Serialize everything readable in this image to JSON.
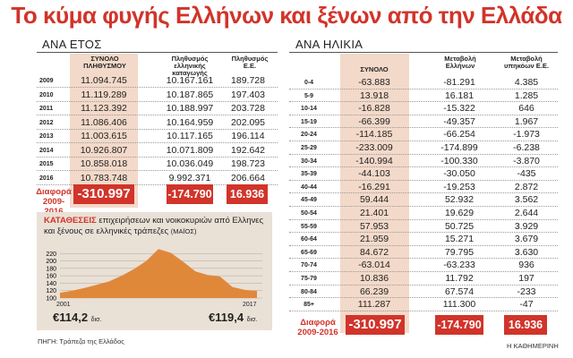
{
  "title": "Το κύμα φυγής Ελλήνων και ξένων από την Ελλάδα",
  "left_section": "ΑΝΑ ΕΤΟΣ",
  "right_section": "ΑΝΑ ΗΛΙΚΙΑ",
  "left_headers": {
    "total": "ΣΥΝΟΛΟ ΠΛΗΘΥΣΜΟΥ",
    "greek": "Πληθυσμός ελληνικής καταγωγής",
    "eu": "Πληθυσμός Ε.Ε."
  },
  "right_headers": {
    "total": "ΣΥΝΟΛΟ",
    "greek": "Μεταβολή Ελλήνων",
    "eu": "Μεταβολή υπηκόων Ε.Ε."
  },
  "diff_label": "Διαφορά 2009-2016",
  "chart_data": [
    {
      "type": "table",
      "columns": [
        "",
        "ΣΥΝΟΛΟ ΠΛΗΘΥΣΜΟΥ",
        "Πληθυσμός ελληνικής καταγωγής",
        "Πληθυσμός Ε.Ε."
      ],
      "rows": [
        [
          "2009",
          "11.094.745",
          "10.167.161",
          "189.728"
        ],
        [
          "2010",
          "11.119.289",
          "10.187.865",
          "197.403"
        ],
        [
          "2011",
          "11.123.392",
          "10.188.997",
          "203.728"
        ],
        [
          "2012",
          "11.086.406",
          "10.164.959",
          "202.095"
        ],
        [
          "2013",
          "11.003.615",
          "10.117.165",
          "196.114"
        ],
        [
          "2014",
          "10.926.807",
          "10.071.809",
          "192.642"
        ],
        [
          "2015",
          "10.858.018",
          "10.036.049",
          "198.723"
        ],
        [
          "2016",
          "10.783.748",
          "9.992.371",
          "206.664"
        ]
      ],
      "diff": [
        "-310.997",
        "-174.790",
        "16.936"
      ]
    },
    {
      "type": "table",
      "columns": [
        "",
        "ΣΥΝΟΛΟ",
        "Μεταβολή Ελλήνων",
        "Μεταβολή υπηκόων Ε.Ε."
      ],
      "rows": [
        [
          "0-4",
          "-63.883",
          "-81.291",
          "4.385"
        ],
        [
          "5-9",
          "13.918",
          "16.181",
          "1.285"
        ],
        [
          "10-14",
          "-16.828",
          "-15.322",
          "646"
        ],
        [
          "15-19",
          "-66.399",
          "-49.357",
          "1.967"
        ],
        [
          "20-24",
          "-114.185",
          "-66.254",
          "-1.973"
        ],
        [
          "25-29",
          "-233.009",
          "-174.899",
          "-6.238"
        ],
        [
          "30-34",
          "-140.994",
          "-100.330",
          "-3.870"
        ],
        [
          "35-39",
          "-44.103",
          "-30.050",
          "-435"
        ],
        [
          "40-44",
          "-16.291",
          "-19.253",
          "2.872"
        ],
        [
          "45-49",
          "59.444",
          "52.932",
          "3.562"
        ],
        [
          "50-54",
          "21.401",
          "19.629",
          "2.644"
        ],
        [
          "55-59",
          "57.953",
          "50.725",
          "3.929"
        ],
        [
          "60-64",
          "21.959",
          "15.271",
          "3.679"
        ],
        [
          "65-69",
          "84.672",
          "79.795",
          "3.630"
        ],
        [
          "70-74",
          "-63.014",
          "-63.233",
          "936"
        ],
        [
          "75-79",
          "10.836",
          "11.792",
          "197"
        ],
        [
          "80-84",
          "66.239",
          "67.574",
          "-233"
        ],
        [
          "85+",
          "111.287",
          "111.300",
          "-47"
        ]
      ],
      "diff": [
        "-310.997",
        "-174.790",
        "16.936"
      ]
    },
    {
      "type": "area",
      "title_highlight": "ΚΑΤΑΘΕΣΕΙΣ",
      "title_rest": "επιχειρήσεων και νοικοκυριών από Ελληνες και ξένους σε ελληνικές τράπεζες",
      "title_unit": "(ΜΑΪΟΣ)",
      "x": [
        2001,
        2002,
        2003,
        2004,
        2005,
        2006,
        2007,
        2008,
        2009,
        2010,
        2011,
        2012,
        2013,
        2014,
        2015,
        2016,
        2017
      ],
      "values": [
        114.2,
        120,
        127,
        136,
        145,
        160,
        178,
        200,
        232,
        222,
        198,
        172,
        162,
        158,
        130,
        122,
        119.4
      ],
      "ylim": [
        100,
        240
      ],
      "yticks": [
        100,
        120,
        140,
        160,
        180,
        200,
        220
      ],
      "x_start_label": "2001",
      "x_end_label": "2017",
      "start_value": "€114,2",
      "start_unit": "δισ.",
      "end_value": "€119,4",
      "end_unit": "δισ.",
      "fill_color": "#e0883a"
    }
  ],
  "source": "ΠΗΓΗ: Τράπεζα της Ελλάδος",
  "credit": "Η ΚΑΘΗΜΕΡΙΝΗ",
  "accent_color": "#d1342a"
}
